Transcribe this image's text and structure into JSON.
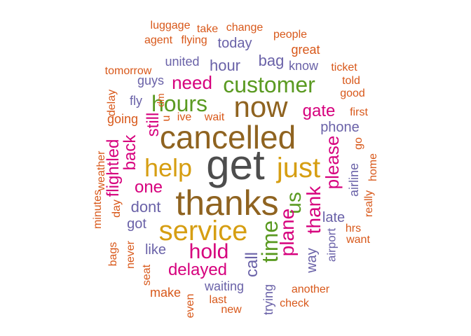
{
  "colors": {
    "dark_gray": "#4d4d4d",
    "brown": "#8f6320",
    "gold": "#d69e12",
    "green": "#5a9a21",
    "magenta": "#d6007d",
    "purple": "#6a62a8",
    "orange": "#d8581a"
  },
  "words": [
    {
      "text": "get",
      "color": "dark_gray",
      "size": 60,
      "vertical": false
    },
    {
      "text": "thanks",
      "color": "brown",
      "size": 50,
      "vertical": false
    },
    {
      "text": "cancelled",
      "color": "brown",
      "size": 46,
      "vertical": false
    },
    {
      "text": "now",
      "color": "brown",
      "size": 42,
      "vertical": false
    },
    {
      "text": "service",
      "color": "gold",
      "size": 40,
      "vertical": false
    },
    {
      "text": "just",
      "color": "gold",
      "size": 40,
      "vertical": false
    },
    {
      "text": "help",
      "color": "gold",
      "size": 36,
      "vertical": false
    },
    {
      "text": "customer",
      "color": "green",
      "size": 32,
      "vertical": false
    },
    {
      "text": "hours",
      "color": "green",
      "size": 32,
      "vertical": false
    },
    {
      "text": "time",
      "color": "green",
      "size": 32,
      "vertical": true
    },
    {
      "text": "us",
      "color": "green",
      "size": 30,
      "vertical": true
    },
    {
      "text": "hold",
      "color": "magenta",
      "size": 30,
      "vertical": false
    },
    {
      "text": "plane",
      "color": "magenta",
      "size": 28,
      "vertical": true
    },
    {
      "text": "thank",
      "color": "magenta",
      "size": 28,
      "vertical": true
    },
    {
      "text": "please",
      "color": "magenta",
      "size": 26,
      "vertical": true
    },
    {
      "text": "need",
      "color": "magenta",
      "size": 26,
      "vertical": false
    },
    {
      "text": "delayed",
      "color": "magenta",
      "size": 24,
      "vertical": false
    },
    {
      "text": "gate",
      "color": "magenta",
      "size": 24,
      "vertical": false
    },
    {
      "text": "back",
      "color": "magenta",
      "size": 24,
      "vertical": true
    },
    {
      "text": "flightled",
      "color": "magenta",
      "size": 24,
      "vertical": true
    },
    {
      "text": "one",
      "color": "magenta",
      "size": 24,
      "vertical": false
    },
    {
      "text": "still",
      "color": "magenta",
      "size": 24,
      "vertical": true
    },
    {
      "text": "call",
      "color": "purple",
      "size": 24,
      "vertical": true
    },
    {
      "text": "hour",
      "color": "purple",
      "size": 22,
      "vertical": false
    },
    {
      "text": "bag",
      "color": "purple",
      "size": 22,
      "vertical": false
    },
    {
      "text": "dont",
      "color": "purple",
      "size": 22,
      "vertical": false
    },
    {
      "text": "late",
      "color": "purple",
      "size": 20,
      "vertical": false
    },
    {
      "text": "phone",
      "color": "purple",
      "size": 20,
      "vertical": false
    },
    {
      "text": "today",
      "color": "purple",
      "size": 20,
      "vertical": false
    },
    {
      "text": "like",
      "color": "purple",
      "size": 20,
      "vertical": false
    },
    {
      "text": "got",
      "color": "purple",
      "size": 20,
      "vertical": false
    },
    {
      "text": "way",
      "color": "purple",
      "size": 20,
      "vertical": true
    },
    {
      "text": "airline",
      "color": "purple",
      "size": 18,
      "vertical": true
    },
    {
      "text": "united",
      "color": "purple",
      "size": 18,
      "vertical": false
    },
    {
      "text": "guys",
      "color": "purple",
      "size": 18,
      "vertical": false
    },
    {
      "text": "waiting",
      "color": "purple",
      "size": 18,
      "vertical": false
    },
    {
      "text": "know",
      "color": "purple",
      "size": 18,
      "vertical": false
    },
    {
      "text": "fly",
      "color": "purple",
      "size": 18,
      "vertical": false
    },
    {
      "text": "trying",
      "color": "purple",
      "size": 18,
      "vertical": true
    },
    {
      "text": "airport",
      "color": "purple",
      "size": 17,
      "vertical": true
    },
    {
      "text": "going",
      "color": "orange",
      "size": 18,
      "vertical": false
    },
    {
      "text": "great",
      "color": "orange",
      "size": 18,
      "vertical": false
    },
    {
      "text": "make",
      "color": "orange",
      "size": 18,
      "vertical": false
    },
    {
      "text": "ive",
      "color": "orange",
      "size": 16,
      "vertical": false
    },
    {
      "text": "wait",
      "color": "orange",
      "size": 16,
      "vertical": false
    },
    {
      "text": "dm",
      "color": "orange",
      "size": 14,
      "vertical": true
    },
    {
      "text": "u",
      "color": "orange",
      "size": 16,
      "vertical": true
    },
    {
      "text": "delay",
      "color": "orange",
      "size": 16,
      "vertical": true
    },
    {
      "text": "tomorrow",
      "color": "orange",
      "size": 16,
      "vertical": false
    },
    {
      "text": "agent",
      "color": "orange",
      "size": 16,
      "vertical": false
    },
    {
      "text": "flying",
      "color": "orange",
      "size": 16,
      "vertical": false
    },
    {
      "text": "luggage",
      "color": "orange",
      "size": 16,
      "vertical": false
    },
    {
      "text": "take",
      "color": "orange",
      "size": 16,
      "vertical": false
    },
    {
      "text": "change",
      "color": "orange",
      "size": 16,
      "vertical": false
    },
    {
      "text": "people",
      "color": "orange",
      "size": 16,
      "vertical": false
    },
    {
      "text": "ticket",
      "color": "orange",
      "size": 16,
      "vertical": false
    },
    {
      "text": "told",
      "color": "orange",
      "size": 16,
      "vertical": false
    },
    {
      "text": "good",
      "color": "orange",
      "size": 16,
      "vertical": false
    },
    {
      "text": "first",
      "color": "orange",
      "size": 16,
      "vertical": false
    },
    {
      "text": "go",
      "color": "orange",
      "size": 16,
      "vertical": true
    },
    {
      "text": "home",
      "color": "orange",
      "size": 16,
      "vertical": true
    },
    {
      "text": "really",
      "color": "orange",
      "size": 16,
      "vertical": true
    },
    {
      "text": "hrs",
      "color": "orange",
      "size": 16,
      "vertical": false
    },
    {
      "text": "want",
      "color": "orange",
      "size": 16,
      "vertical": false
    },
    {
      "text": "weather",
      "color": "orange",
      "size": 16,
      "vertical": true
    },
    {
      "text": "minutes",
      "color": "orange",
      "size": 16,
      "vertical": true
    },
    {
      "text": "day",
      "color": "orange",
      "size": 16,
      "vertical": true
    },
    {
      "text": "bags",
      "color": "orange",
      "size": 16,
      "vertical": true
    },
    {
      "text": "never",
      "color": "orange",
      "size": 16,
      "vertical": true
    },
    {
      "text": "seat",
      "color": "orange",
      "size": 16,
      "vertical": true
    },
    {
      "text": "even",
      "color": "orange",
      "size": 16,
      "vertical": true
    },
    {
      "text": "last",
      "color": "orange",
      "size": 16,
      "vertical": false
    },
    {
      "text": "new",
      "color": "orange",
      "size": 16,
      "vertical": false
    },
    {
      "text": "another",
      "color": "orange",
      "size": 16,
      "vertical": false
    },
    {
      "text": "check",
      "color": "orange",
      "size": 16,
      "vertical": false
    }
  ]
}
